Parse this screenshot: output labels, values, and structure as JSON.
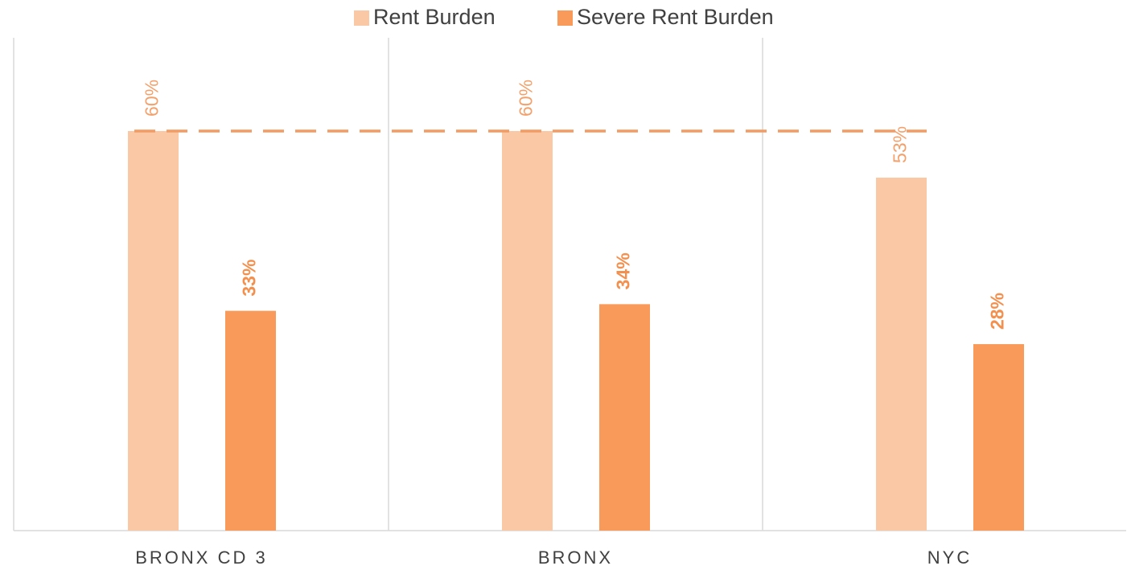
{
  "chart_data": {
    "type": "bar",
    "categories": [
      "BRONX CD 3",
      "BRONX",
      "NYC"
    ],
    "series": [
      {
        "name": "Rent Burden",
        "color": "#fbc8a6",
        "label_color": "#f4a06a",
        "values": [
          60,
          60,
          53
        ],
        "value_labels": [
          "60%",
          "60%",
          "53%"
        ]
      },
      {
        "name": "Severe Rent Burden",
        "color": "#f99a5a",
        "label_color": "#f4904d",
        "values": [
          33,
          34,
          28
        ],
        "value_labels": [
          "33%",
          "34%",
          "28%"
        ]
      }
    ],
    "reference_line": {
      "value": 60,
      "color": "#f29c63"
    },
    "ylim": [
      0,
      74
    ],
    "legend": "top",
    "grid": false
  }
}
